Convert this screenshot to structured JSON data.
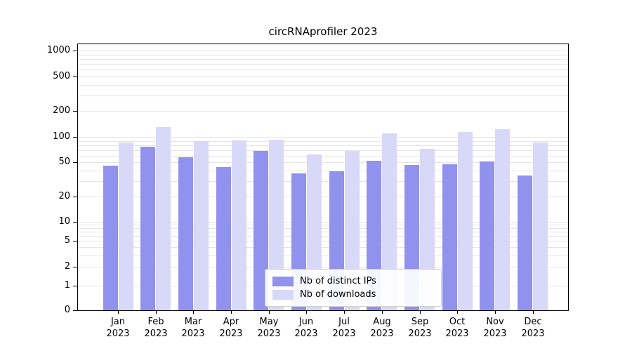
{
  "chart_data": {
    "type": "bar",
    "title": "circRNAprofiler 2023",
    "year": "2023",
    "months": [
      "Jan",
      "Feb",
      "Mar",
      "Apr",
      "May",
      "Jun",
      "Jul",
      "Aug",
      "Sep",
      "Oct",
      "Nov",
      "Dec"
    ],
    "categories": [
      "Jan 2023",
      "Feb 2023",
      "Mar 2023",
      "Apr 2023",
      "May 2023",
      "Jun 2023",
      "Jul 2023",
      "Aug 2023",
      "Sep 2023",
      "Oct 2023",
      "Nov 2023",
      "Dec 2023"
    ],
    "series": [
      {
        "name": "Nb of distinct IPs",
        "color": "#9191ee",
        "values": [
          46,
          77,
          58,
          44,
          68,
          37,
          39,
          52,
          47,
          48,
          51,
          35
        ]
      },
      {
        "name": "Nb of downloads",
        "color": "#d8d8f8",
        "values": [
          86,
          131,
          90,
          91,
          92,
          62,
          68,
          110,
          72,
          115,
          122,
          86
        ]
      }
    ],
    "y_scale": "symlog",
    "y_ticks": [
      1000,
      500,
      200,
      100,
      50,
      20,
      10,
      5,
      2,
      1,
      0
    ],
    "ylim": [
      0,
      1200
    ],
    "grid": "horizontal minor log gridlines",
    "legend_position": "lower center"
  },
  "colors": {
    "background": "#ffffff",
    "axis": "#000000",
    "gridline": "#e5e5e5",
    "bar_distinct_ips": "#9191ee",
    "bar_downloads": "#d8d8f8"
  }
}
